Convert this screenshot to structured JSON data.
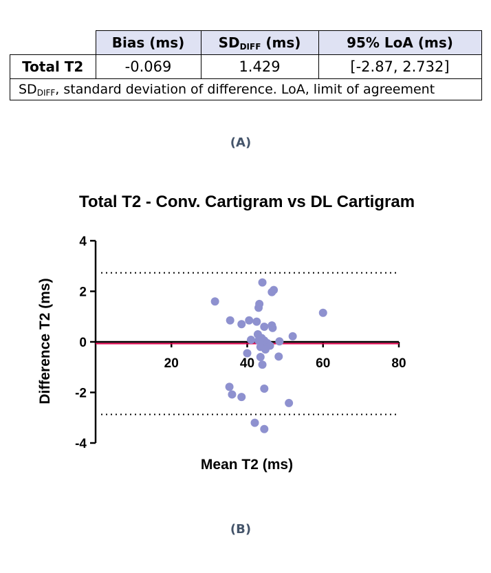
{
  "table": {
    "headers": [
      "Bias (ms)",
      "SD",
      "DIFF",
      " (ms)",
      "95% LoA (ms)"
    ],
    "row_label": "Total T2",
    "values": [
      "-0.069",
      "1.429",
      "[-2.87, 2.732]"
    ],
    "note_sd": "SD",
    "note_sub": "DIFF",
    "note_text": ", standard deviation of difference. LoA, limit of agreement"
  },
  "captions": {
    "a": "(A)",
    "b": "(B)"
  },
  "colors": {
    "header_bg": "#dfe2f3",
    "points": "#8e91cf",
    "bias_line": "#e0004d",
    "caption": "#44546a"
  },
  "chart_data": {
    "type": "scatter",
    "title": "Total T2 - Conv. Cartigram vs DL Cartigram",
    "xlabel": "Mean T2 (ms)",
    "ylabel": "Difference T2 (ms)",
    "xlim": [
      0,
      80
    ],
    "ylim": [
      -4,
      4
    ],
    "xticks": [
      20,
      40,
      60,
      80
    ],
    "yticks": [
      -4,
      -2,
      0,
      2,
      4
    ],
    "bias": -0.069,
    "loa_upper": 2.732,
    "loa_lower": -2.87,
    "points": [
      [
        31.5,
        1.6
      ],
      [
        35.5,
        0.85
      ],
      [
        38.5,
        0.7
      ],
      [
        40.5,
        0.85
      ],
      [
        42.5,
        0.8
      ],
      [
        43.0,
        1.35
      ],
      [
        43.2,
        1.5
      ],
      [
        44.0,
        2.35
      ],
      [
        46.5,
        1.97
      ],
      [
        47.0,
        2.05
      ],
      [
        44.5,
        0.6
      ],
      [
        46.5,
        0.65
      ],
      [
        46.7,
        0.55
      ],
      [
        60.0,
        1.15
      ],
      [
        52.0,
        0.22
      ],
      [
        42.8,
        0.3
      ],
      [
        41.0,
        0.08
      ],
      [
        43.8,
        0.15
      ],
      [
        44.5,
        0.05
      ],
      [
        45.3,
        -0.05
      ],
      [
        46.0,
        -0.15
      ],
      [
        48.5,
        0.02
      ],
      [
        43.5,
        -0.2
      ],
      [
        44.8,
        -0.3
      ],
      [
        40.0,
        -0.45
      ],
      [
        43.5,
        -0.6
      ],
      [
        48.3,
        -0.58
      ],
      [
        44.0,
        -0.9
      ],
      [
        35.3,
        -1.78
      ],
      [
        44.5,
        -1.85
      ],
      [
        36.0,
        -2.08
      ],
      [
        38.5,
        -2.18
      ],
      [
        51.0,
        -2.42
      ],
      [
        42.0,
        -3.2
      ],
      [
        44.5,
        -3.45
      ],
      [
        43.0,
        0.05
      ]
    ]
  }
}
